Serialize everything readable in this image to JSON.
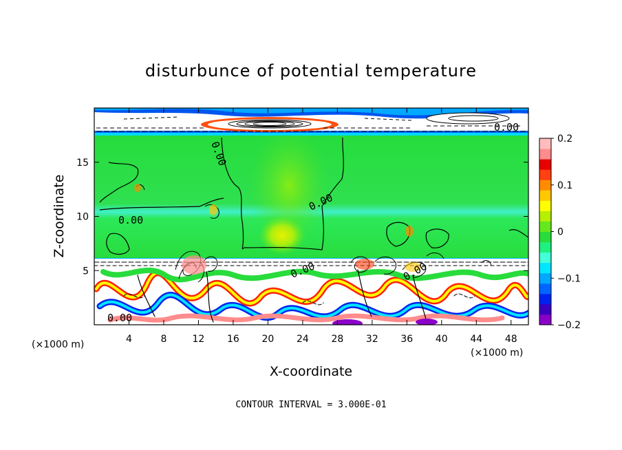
{
  "chart_data": {
    "type": "heatmap",
    "title": "disturbunce of potential temperature",
    "xlabel": "X-coordinate",
    "ylabel": "Z-coordinate",
    "x_unit_left": "(×1000 m)",
    "x_unit_right": "(×1000 m)",
    "xlim": [
      0,
      50
    ],
    "ylim": [
      0,
      20
    ],
    "x_ticks": [
      4,
      8,
      12,
      16,
      20,
      24,
      28,
      32,
      36,
      40,
      44,
      48
    ],
    "x_tick_labels": [
      "4",
      "8",
      "12",
      "16",
      "20",
      "24",
      "28",
      "32",
      "36",
      "40",
      "44",
      "48"
    ],
    "y_ticks": [
      5,
      10,
      15
    ],
    "y_tick_labels": [
      "5",
      "10",
      "15"
    ],
    "colorbar": {
      "min": -0.2,
      "max": 0.2,
      "ticks": [
        0.2,
        0.1,
        0,
        -0.1,
        -0.2
      ],
      "tick_labels": [
        "0.2",
        "0.1",
        "0",
        "−0.1",
        "−0.2"
      ],
      "colors": [
        "#8b00c8",
        "#3a00c0",
        "#0022ee",
        "#0066ff",
        "#00a8ff",
        "#00e6ff",
        "#44ffd8",
        "#20f080",
        "#28dc3c",
        "#66e81e",
        "#b4f000",
        "#ffff00",
        "#ffc800",
        "#ff8c00",
        "#ff4010",
        "#e80000",
        "#ff8c8c",
        "#ffbcbc"
      ]
    },
    "contour_interval": "CONTOUR INTERVAL = 3.000E-01",
    "contour_labels": [
      "0.00",
      "0.00",
      "0.00",
      "0.00",
      "0.00",
      "0.00",
      "0.00"
    ],
    "grid": false
  }
}
